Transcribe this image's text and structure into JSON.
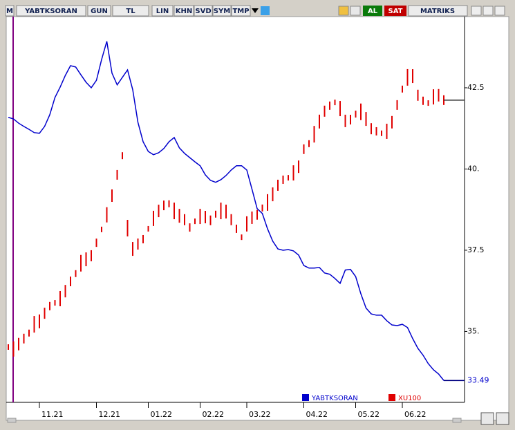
{
  "toolbar": {
    "items": [
      "M",
      "YABTKSORAN",
      "GUN",
      "TL",
      "LIN",
      "KHN",
      "SVD",
      "SYM",
      "TMP"
    ],
    "buy": "AL",
    "sell": "SAT",
    "brand": "MATRIKS"
  },
  "chart_data": {
    "type": "line",
    "categories": [
      null,
      null,
      null,
      null,
      null,
      null,
      "11.21",
      null,
      null,
      null,
      null,
      null,
      null,
      null,
      null,
      null,
      null,
      "12.21",
      null,
      null,
      null,
      null,
      null,
      null,
      null,
      null,
      null,
      "01.22",
      null,
      null,
      null,
      null,
      null,
      null,
      null,
      null,
      null,
      "02.22",
      null,
      null,
      null,
      null,
      null,
      null,
      null,
      null,
      "03.22",
      null,
      null,
      null,
      null,
      null,
      null,
      null,
      null,
      null,
      null,
      "04.22",
      null,
      null,
      null,
      null,
      null,
      null,
      null,
      null,
      null,
      "05.22",
      null,
      null,
      null,
      null,
      null,
      null,
      null,
      null,
      "06.22",
      null,
      null,
      null,
      null,
      null,
      null,
      null,
      null
    ],
    "ylim": [
      32.86,
      44.67
    ],
    "yticks": [
      {
        "value": 35,
        "label": "35."
      },
      37.5,
      {
        "value": 40,
        "label": "40."
      },
      42.5
    ],
    "series": [
      {
        "name": "YABTKSORAN",
        "color": "#0000cc",
        "style": "line",
        "values": [
          41.59,
          41.54,
          41.41,
          41.31,
          41.22,
          41.12,
          41.1,
          41.31,
          41.67,
          42.2,
          42.52,
          42.88,
          43.18,
          43.14,
          42.9,
          42.67,
          42.5,
          42.73,
          43.37,
          43.93,
          42.95,
          42.59,
          42.82,
          43.05,
          42.44,
          41.44,
          40.84,
          40.54,
          40.44,
          40.5,
          40.63,
          40.84,
          40.97,
          40.65,
          40.48,
          40.35,
          40.22,
          40.1,
          39.82,
          39.65,
          39.59,
          39.67,
          39.8,
          39.97,
          40.1,
          40.1,
          39.97,
          39.38,
          38.78,
          38.63,
          38.16,
          37.78,
          37.54,
          37.5,
          37.52,
          37.48,
          37.35,
          37.03,
          36.95,
          36.95,
          36.97,
          36.8,
          36.76,
          36.63,
          36.48,
          36.89,
          36.91,
          36.69,
          36.16,
          35.72,
          35.54,
          35.5,
          35.5,
          35.33,
          35.2,
          35.18,
          35.22,
          35.12,
          34.78,
          34.48,
          34.27,
          34.01,
          33.82,
          33.69,
          33.49
        ]
      },
      {
        "name": "XU100",
        "color": "#e00000",
        "style": "bars",
        "values": [
          34.52,
          34.46,
          34.61,
          34.78,
          34.95,
          35.22,
          35.31,
          35.56,
          35.78,
          35.88,
          36.01,
          36.24,
          36.54,
          36.78,
          37.1,
          37.22,
          37.33,
          37.73,
          38.14,
          38.59,
          39.18,
          39.82,
          40.41,
          38.18,
          37.54,
          37.69,
          37.84,
          38.16,
          38.48,
          38.71,
          38.88,
          38.93,
          38.71,
          38.56,
          38.44,
          38.2,
          38.39,
          38.54,
          38.52,
          38.42,
          38.61,
          38.71,
          38.69,
          38.44,
          38.16,
          37.9,
          38.31,
          38.5,
          38.59,
          38.8,
          38.97,
          39.22,
          39.5,
          39.67,
          39.73,
          39.88,
          40.07,
          40.61,
          40.78,
          41.07,
          41.46,
          41.78,
          41.95,
          42.05,
          41.86,
          41.48,
          41.52,
          41.69,
          41.76,
          41.54,
          41.24,
          41.16,
          41.1,
          41.16,
          41.44,
          41.97,
          42.46,
          42.82,
          42.86,
          42.27,
          42.1,
          42.03,
          42.22,
          42.27,
          42.12
        ]
      }
    ]
  }
}
